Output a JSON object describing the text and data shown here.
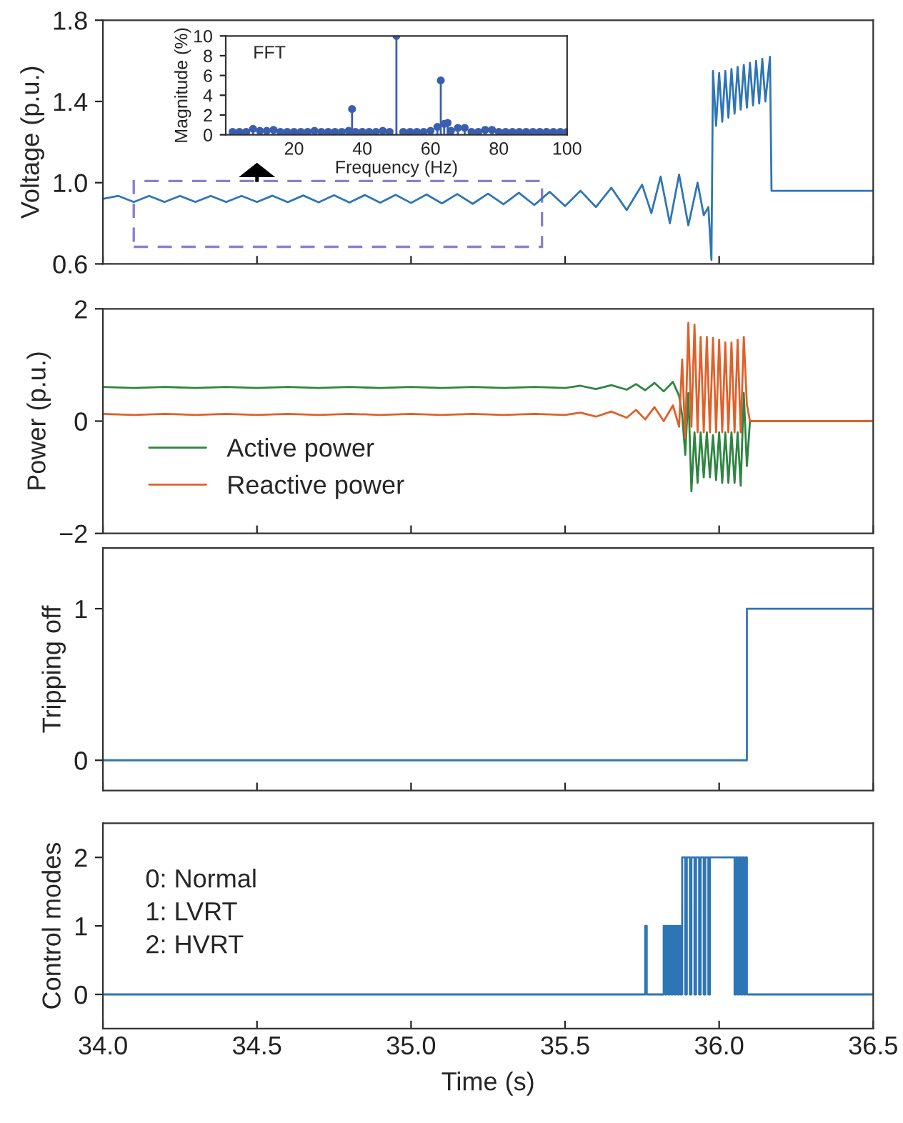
{
  "chart_data": [
    {
      "type": "line",
      "ylabel": "Voltage (p.u.)",
      "xlim": [
        34.0,
        36.5
      ],
      "xticks": [
        34,
        34.5,
        35,
        35.5,
        36,
        36.5
      ],
      "ylim": [
        0.6,
        1.8
      ],
      "yticks": [
        {
          "value": 0.6,
          "label": "0.6"
        },
        {
          "value": 1.0,
          "label": "1.0"
        },
        {
          "value": 1.4,
          "label": "1.4"
        },
        {
          "value": 1.8,
          "label": "1.8"
        }
      ],
      "tick_labels": "y",
      "grid": false,
      "legend": false,
      "series": [
        {
          "color": "#2e75b6",
          "x": [
            34.0,
            34.05,
            34.1,
            34.15,
            34.2,
            34.25,
            34.3,
            34.35,
            34.4,
            34.45,
            34.5,
            34.55,
            34.6,
            34.65,
            34.7,
            34.75,
            34.8,
            34.85,
            34.9,
            34.95,
            35.0,
            35.05,
            35.1,
            35.15,
            35.2,
            35.25,
            35.3,
            35.35,
            35.4,
            35.45,
            35.5,
            35.55,
            35.6,
            35.65,
            35.7,
            35.75,
            35.78,
            35.81,
            35.84,
            35.87,
            35.9,
            35.93,
            35.95,
            35.965,
            35.975,
            35.98,
            35.99,
            36.0,
            36.01,
            36.02,
            36.03,
            36.04,
            36.05,
            36.06,
            36.07,
            36.08,
            36.09,
            36.1,
            36.11,
            36.12,
            36.13,
            36.14,
            36.15,
            36.165,
            36.17,
            36.5
          ],
          "values": [
            0.92,
            0.935,
            0.905,
            0.935,
            0.905,
            0.935,
            0.905,
            0.935,
            0.905,
            0.935,
            0.905,
            0.936,
            0.904,
            0.937,
            0.903,
            0.938,
            0.902,
            0.939,
            0.901,
            0.94,
            0.9,
            0.942,
            0.898,
            0.944,
            0.896,
            0.946,
            0.894,
            0.95,
            0.89,
            0.955,
            0.885,
            0.96,
            0.88,
            0.975,
            0.865,
            0.99,
            0.85,
            1.03,
            0.8,
            1.04,
            0.79,
            1.0,
            0.84,
            0.88,
            0.62,
            1.55,
            1.28,
            1.54,
            1.3,
            1.55,
            1.32,
            1.56,
            1.34,
            1.57,
            1.36,
            1.58,
            1.37,
            1.59,
            1.38,
            1.6,
            1.39,
            1.61,
            1.4,
            1.62,
            0.96,
            0.96
          ]
        }
      ]
    },
    {
      "type": "lollipop",
      "xlabel": "Frequency (Hz)",
      "ylabel": "Magnitude (%)",
      "annotations": [
        "FFT"
      ],
      "xlim": [
        0,
        100
      ],
      "xticks": [
        20,
        40,
        60,
        80,
        100
      ],
      "ylim": [
        0,
        10
      ],
      "yticks": [
        0,
        2,
        4,
        6,
        8,
        10
      ],
      "marker": "circle",
      "grid": false,
      "legend": false,
      "series": [
        {
          "color": "#3a5fb0",
          "x": [
            2,
            4,
            6,
            8,
            10,
            12,
            14,
            16,
            18,
            20,
            22,
            24,
            26,
            28,
            30,
            32,
            34,
            36,
            37,
            38,
            40,
            42,
            44,
            46,
            48,
            50,
            52,
            54,
            56,
            58,
            60,
            62,
            63,
            64,
            65,
            66,
            68,
            70,
            72,
            74,
            76,
            78,
            80,
            82,
            84,
            86,
            88,
            90,
            92,
            94,
            96,
            98,
            100
          ],
          "values": [
            0.3,
            0.3,
            0.3,
            0.6,
            0.4,
            0.4,
            0.5,
            0.3,
            0.3,
            0.3,
            0.3,
            0.3,
            0.4,
            0.3,
            0.3,
            0.3,
            0.3,
            0.4,
            2.6,
            0.3,
            0.3,
            0.3,
            0.3,
            0.4,
            0.3,
            10,
            0.3,
            0.3,
            0.3,
            0.3,
            0.4,
            0.8,
            5.5,
            1.1,
            1.2,
            0.4,
            0.7,
            0.7,
            0.3,
            0.3,
            0.5,
            0.5,
            0.3,
            0.3,
            0.3,
            0.3,
            0.3,
            0.3,
            0.3,
            0.3,
            0.3,
            0.3,
            0.3
          ]
        }
      ]
    },
    {
      "type": "line",
      "ylabel": "Power (p.u.)",
      "xlim": [
        34.0,
        36.5
      ],
      "xticks": [
        34,
        34.5,
        35,
        35.5,
        36,
        36.5
      ],
      "ylim": [
        -2,
        2
      ],
      "yticks": [
        {
          "value": -2,
          "label": "−2"
        },
        0,
        2
      ],
      "tick_labels": "y",
      "grid": false,
      "legend": "bottom left",
      "series": [
        {
          "name": "Active power",
          "color": "#2e8540",
          "x": [
            34.0,
            34.1,
            34.2,
            34.3,
            34.4,
            34.5,
            34.6,
            34.7,
            34.8,
            34.9,
            35.0,
            35.1,
            35.2,
            35.3,
            35.4,
            35.5,
            35.55,
            35.6,
            35.65,
            35.7,
            35.73,
            35.76,
            35.79,
            35.82,
            35.85,
            35.87,
            35.88,
            35.89,
            35.9,
            35.91,
            35.92,
            35.93,
            35.94,
            35.95,
            35.96,
            35.97,
            35.98,
            35.99,
            36.0,
            36.01,
            36.02,
            36.03,
            36.04,
            36.05,
            36.06,
            36.07,
            36.08,
            36.09,
            36.1,
            36.5
          ],
          "values": [
            0.61,
            0.59,
            0.61,
            0.59,
            0.61,
            0.59,
            0.61,
            0.59,
            0.61,
            0.59,
            0.61,
            0.59,
            0.61,
            0.59,
            0.61,
            0.59,
            0.63,
            0.57,
            0.64,
            0.56,
            0.66,
            0.55,
            0.68,
            0.53,
            0.7,
            0.45,
            0.1,
            -0.6,
            0.5,
            -1.25,
            -0.2,
            -1.1,
            -0.2,
            -1.0,
            -0.2,
            -1.0,
            -0.25,
            -1.05,
            -0.2,
            -1.1,
            -0.2,
            -1.1,
            -0.2,
            -1.1,
            -0.2,
            -1.15,
            0.5,
            -0.8,
            0,
            0
          ]
        },
        {
          "name": "Reactive power",
          "color": "#e0602a",
          "x": [
            34.0,
            34.1,
            34.2,
            34.3,
            34.4,
            34.5,
            34.6,
            34.7,
            34.8,
            34.9,
            35.0,
            35.1,
            35.2,
            35.3,
            35.4,
            35.5,
            35.55,
            35.6,
            35.65,
            35.7,
            35.73,
            35.76,
            35.79,
            35.82,
            35.85,
            35.87,
            35.88,
            35.89,
            35.9,
            35.91,
            35.92,
            35.93,
            35.94,
            35.95,
            35.96,
            35.97,
            35.98,
            35.99,
            36.0,
            36.01,
            36.02,
            36.03,
            36.04,
            36.05,
            36.06,
            36.07,
            36.08,
            36.09,
            36.1,
            36.5
          ],
          "values": [
            0.13,
            0.11,
            0.13,
            0.11,
            0.13,
            0.11,
            0.13,
            0.11,
            0.13,
            0.11,
            0.13,
            0.11,
            0.13,
            0.11,
            0.13,
            0.11,
            0.15,
            0.08,
            0.17,
            0.06,
            0.2,
            0.03,
            0.25,
            0.0,
            0.28,
            -0.1,
            1.1,
            -0.3,
            1.75,
            -0.1,
            1.72,
            -0.2,
            1.5,
            -0.2,
            1.5,
            -0.2,
            1.48,
            -0.2,
            1.45,
            -0.2,
            1.4,
            -0.2,
            1.4,
            -0.2,
            1.45,
            -0.2,
            1.5,
            0.3,
            0,
            0
          ]
        }
      ]
    },
    {
      "type": "step",
      "ylabel": "Tripping off",
      "xlim": [
        34.0,
        36.5
      ],
      "xticks": [
        34,
        34.5,
        35,
        35.5,
        36,
        36.5
      ],
      "ylim": [
        -0.2,
        1.4
      ],
      "yticks": [
        0,
        1
      ],
      "tick_labels": "y",
      "grid": false,
      "legend": false,
      "series": [
        {
          "color": "#2e75b6",
          "x": [
            34.0,
            36.09,
            36.5
          ],
          "values": [
            0,
            1,
            1
          ]
        }
      ]
    },
    {
      "type": "step",
      "xlabel": "Time (s)",
      "ylabel": "Control modes",
      "annotations": [
        "0: Normal",
        "1: LVRT",
        "2: HVRT"
      ],
      "xlim": [
        34.0,
        36.5
      ],
      "xticks": [
        {
          "value": 34.0,
          "label": "34.0"
        },
        {
          "value": 34.5,
          "label": "34.5"
        },
        {
          "value": 35.0,
          "label": "35.0"
        },
        {
          "value": 35.5,
          "label": "35.5"
        },
        {
          "value": 36.0,
          "label": "36.0"
        },
        {
          "value": 36.5,
          "label": "36.5"
        }
      ],
      "ylim": [
        -0.5,
        2.5
      ],
      "yticks": [
        0,
        1,
        2
      ],
      "grid": false,
      "legend": false,
      "series": [
        {
          "color": "#2e75b6",
          "x": [
            34.0,
            35.76,
            35.765,
            35.82,
            35.825,
            35.83,
            35.835,
            35.84,
            35.845,
            35.85,
            35.855,
            35.86,
            35.865,
            35.87,
            35.875,
            35.88,
            35.89,
            35.895,
            35.905,
            35.91,
            35.92,
            35.925,
            35.935,
            35.94,
            35.95,
            35.955,
            35.965,
            35.97,
            35.98,
            36.05,
            36.055,
            36.06,
            36.065,
            36.07,
            36.075,
            36.08,
            36.085,
            36.09,
            36.5
          ],
          "values": [
            0,
            1,
            0,
            1,
            0,
            1,
            0,
            1,
            0,
            1,
            0,
            1,
            0,
            1,
            0,
            2,
            0,
            2,
            0,
            2,
            0,
            2,
            0,
            2,
            0,
            2,
            0,
            2,
            2,
            0,
            2,
            0,
            2,
            0,
            2,
            0,
            2,
            0,
            0
          ]
        }
      ]
    }
  ]
}
